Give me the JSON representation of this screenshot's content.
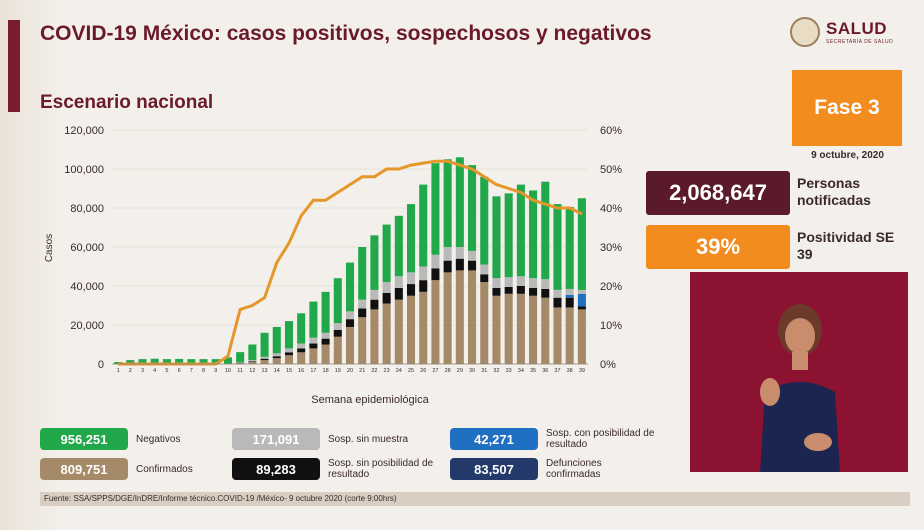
{
  "title": "COVID-19 México: casos positivos, sospechosos y negativos",
  "subtitle": "Escenario nacional",
  "logo": {
    "name": "SALUD",
    "sub": "SECRETARÍA DE SALUD"
  },
  "phase": {
    "label": "Fase 3",
    "date": "9 octubre, 2020"
  },
  "stats": {
    "notified_value": "2,068,647",
    "notified_label": "Personas notificadas",
    "positivity_value": "39%",
    "positivity_label": "Positividad SE 39"
  },
  "colors": {
    "negativos": "#20a84a",
    "sosp_sin_muestra": "#b9b9b9",
    "sosp_con_posibilidad": "#1f6fc2",
    "confirmados": "#a58a6a",
    "sosp_sin_posibilidad": "#111111",
    "defunciones": "#233a6a",
    "positividad": "#e5972b"
  },
  "chart_data": {
    "type": "bar",
    "xlabel": "Semana epidemiológica",
    "ylabel": "Casos",
    "ylim": [
      0,
      120000
    ],
    "y2lim": [
      0,
      60
    ],
    "yticks": [
      "0",
      "20,000",
      "40,000",
      "60,000",
      "80,000",
      "100,000",
      "120,000"
    ],
    "y2ticks": [
      "0%",
      "10%",
      "20%",
      "30%",
      "40%",
      "50%",
      "60%"
    ],
    "categories": [
      "1",
      "2",
      "3",
      "4",
      "5",
      "6",
      "7",
      "8",
      "9",
      "10",
      "11",
      "12",
      "13",
      "14",
      "15",
      "16",
      "17",
      "18",
      "19",
      "20",
      "21",
      "22",
      "23",
      "24",
      "25",
      "26",
      "27",
      "28",
      "29",
      "30",
      "31",
      "32",
      "33",
      "34",
      "35",
      "36",
      "37",
      "38",
      "39"
    ],
    "series": [
      {
        "name": "Confirmados",
        "values": [
          0,
          0,
          0,
          0,
          0,
          0,
          0,
          0,
          0,
          100,
          400,
          1000,
          2000,
          3000,
          4500,
          6000,
          8000,
          10000,
          14000,
          19000,
          24000,
          28000,
          31000,
          33000,
          35000,
          37000,
          43000,
          47000,
          48000,
          48000,
          42000,
          35000,
          36000,
          36000,
          35000,
          34000,
          29000,
          29000,
          28000
        ]
      },
      {
        "name": "Sosp. sin posibilidad de resultado",
        "values": [
          0,
          0,
          0,
          0,
          0,
          0,
          0,
          0,
          0,
          0,
          100,
          300,
          700,
          1000,
          1500,
          2000,
          2500,
          3000,
          3500,
          4000,
          4500,
          5000,
          5500,
          6000,
          6000,
          6000,
          6000,
          6000,
          6000,
          5000,
          4000,
          4000,
          3500,
          4000,
          4000,
          4500,
          5000,
          5000,
          1500
        ]
      },
      {
        "name": "Sosp. con posibilidad de resultado",
        "values": [
          0,
          0,
          0,
          0,
          0,
          0,
          0,
          0,
          0,
          0,
          0,
          0,
          0,
          0,
          0,
          0,
          0,
          0,
          0,
          0,
          0,
          0,
          0,
          0,
          0,
          0,
          0,
          0,
          0,
          0,
          0,
          0,
          0,
          0,
          0,
          0,
          0,
          1500,
          6500
        ]
      },
      {
        "name": "Sosp. sin muestra",
        "values": [
          0,
          0,
          0,
          0,
          0,
          0,
          0,
          0,
          0,
          100,
          300,
          700,
          1000,
          1500,
          2000,
          2500,
          3000,
          3000,
          3500,
          4000,
          4500,
          5000,
          5500,
          6000,
          6000,
          7000,
          7000,
          7000,
          6000,
          5000,
          5000,
          5000,
          5000,
          5000,
          5000,
          5000,
          4000,
          3000,
          2000
        ]
      },
      {
        "name": "Negativos",
        "values": [
          1000,
          2000,
          2500,
          2700,
          2500,
          2600,
          2500,
          2500,
          2500,
          3200,
          5300,
          8000,
          12300,
          13500,
          14000,
          15500,
          18500,
          21000,
          23000,
          25000,
          27000,
          28000,
          29500,
          31000,
          35000,
          42000,
          47000,
          45000,
          46000,
          44000,
          45000,
          42000,
          43000,
          47000,
          45000,
          50000,
          44000,
          42000,
          47000
        ]
      }
    ],
    "line": {
      "name": "Positividad",
      "values": [
        0,
        0,
        0,
        0,
        0,
        0,
        0,
        0,
        0,
        2,
        14,
        15,
        17,
        26,
        31,
        38,
        42,
        42,
        44,
        46,
        48,
        48,
        50,
        50,
        51,
        51.5,
        52,
        52,
        51,
        50,
        48,
        46,
        45,
        44,
        42,
        41,
        40,
        40,
        38.5
      ]
    }
  },
  "legend": [
    {
      "value": "956,251",
      "label": "Negativos",
      "color": "#20a84a"
    },
    {
      "value": "809,751",
      "label": "Confirmados",
      "color": "#a58a6a"
    },
    {
      "value": "171,091",
      "label": "Sosp. sin muestra",
      "color": "#b9b9b9"
    },
    {
      "value": "89,283",
      "label": "Sosp. sin posibilidad de resultado",
      "color": "#111111"
    },
    {
      "value": "42,271",
      "label": "Sosp. con posibilidad de resultado",
      "color": "#1f6fc2"
    },
    {
      "value": "83,507",
      "label": "Defunciones confirmadas",
      "color": "#233a6a"
    }
  ],
  "source": "Fuente: SSA/SPPS/DGE/InDRE/Informe técnico.COVID-19 /México- 9 octubre 2020 (corte 9:00hrs)"
}
